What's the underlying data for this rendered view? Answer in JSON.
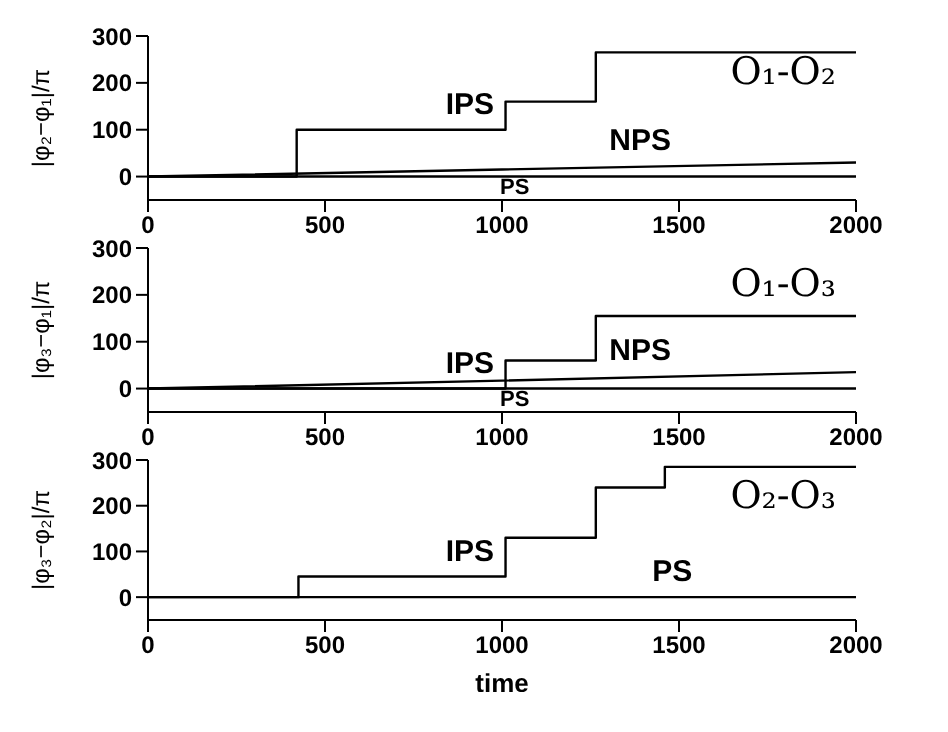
{
  "chart_data": [
    {
      "type": "step",
      "ylabel": "|φ₂−φ₁|/π",
      "annotations": [
        "O₁-O₂"
      ],
      "xlim": [
        0,
        2000
      ],
      "xticks": [
        0,
        500,
        1000,
        1500,
        2000
      ],
      "ylim": [
        -50,
        300
      ],
      "yticks": [
        0,
        100,
        200,
        300
      ],
      "grid": false,
      "series": [
        {
          "name": "IPS",
          "color": "#000000",
          "x": [
            0,
            420,
            1010,
            1265,
            2000
          ],
          "values": [
            0,
            100,
            160,
            265,
            265
          ]
        },
        {
          "name": "NPS",
          "type": "line",
          "color": "#000000",
          "x": [
            0,
            1000,
            2000
          ],
          "values": [
            0,
            15,
            30
          ]
        },
        {
          "name": "PS",
          "color": "#000000",
          "x": [
            0,
            2000
          ],
          "values": [
            0,
            0
          ]
        }
      ]
    },
    {
      "type": "step",
      "ylabel": "|φ₃−φ₁|/π",
      "annotations": [
        "O₁-O₃"
      ],
      "xlim": [
        0,
        2000
      ],
      "xticks": [
        0,
        500,
        1000,
        1500,
        2000
      ],
      "ylim": [
        -50,
        300
      ],
      "yticks": [
        0,
        100,
        200,
        300
      ],
      "grid": false,
      "series": [
        {
          "name": "IPS",
          "color": "#000000",
          "x": [
            0,
            1010,
            1265,
            2000
          ],
          "values": [
            0,
            60,
            155,
            155
          ]
        },
        {
          "name": "NPS",
          "type": "line",
          "color": "#000000",
          "x": [
            0,
            1000,
            2000
          ],
          "values": [
            0,
            17,
            35
          ]
        },
        {
          "name": "PS",
          "color": "#000000",
          "x": [
            0,
            2000
          ],
          "values": [
            0,
            0
          ]
        }
      ]
    },
    {
      "type": "step",
      "xlabel": "time",
      "ylabel": "|φ₃−φ₂|/π",
      "annotations": [
        "O₂-O₃"
      ],
      "xlim": [
        0,
        2000
      ],
      "xticks": [
        0,
        500,
        1000,
        1500,
        2000
      ],
      "ylim": [
        -50,
        300
      ],
      "yticks": [
        0,
        100,
        200,
        300
      ],
      "grid": false,
      "series": [
        {
          "name": "IPS",
          "color": "#000000",
          "x": [
            0,
            425,
            1010,
            1265,
            1460,
            2000
          ],
          "values": [
            0,
            45,
            130,
            240,
            285,
            285
          ]
        },
        {
          "name": "PS",
          "color": "#000000",
          "x": [
            0,
            2000
          ],
          "values": [
            0,
            0
          ]
        }
      ]
    }
  ]
}
